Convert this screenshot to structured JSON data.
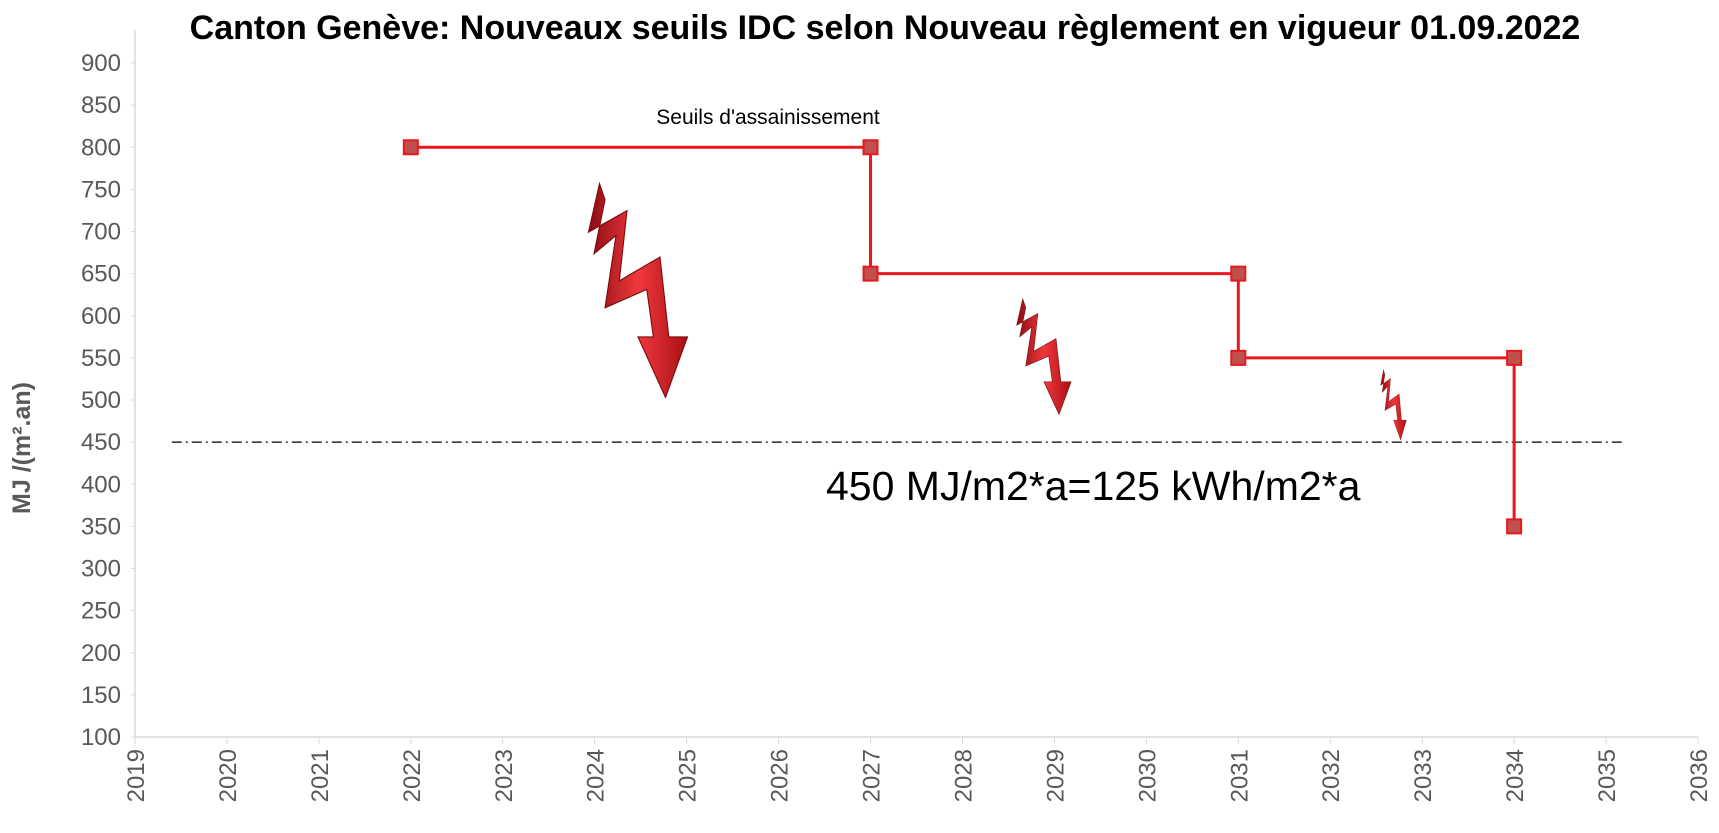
{
  "chart_data": {
    "type": "line",
    "title": "Canton Genève: Nouveaux seuils IDC selon Nouveau règlement en vigueur 01.09.2022",
    "y_label": "MJ /(m².an)",
    "annotation": "Seuils d'assainissement",
    "reference_line": {
      "value": 450,
      "label": "450 MJ/m2*a=125 kWh/m2*a"
    },
    "series": [
      {
        "color": "#e8191e",
        "marker_color": "#c0504d",
        "x": [
          2022,
          2027,
          2027,
          2031,
          2031,
          2034,
          2034
        ],
        "values": [
          800,
          800,
          650,
          650,
          550,
          550,
          350
        ]
      }
    ],
    "xlim": [
      2019,
      2036
    ],
    "xticks": [
      2019,
      2020,
      2021,
      2022,
      2023,
      2024,
      2025,
      2026,
      2027,
      2028,
      2029,
      2030,
      2031,
      2032,
      2033,
      2034,
      2035,
      2036
    ],
    "ylim": [
      100,
      900
    ],
    "yticks": [
      100,
      150,
      200,
      250,
      300,
      350,
      400,
      450,
      500,
      550,
      600,
      650,
      700,
      750,
      800,
      850,
      900
    ],
    "grid": false
  }
}
